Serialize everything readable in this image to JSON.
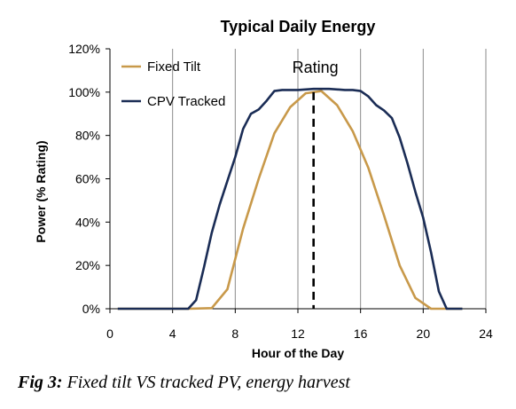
{
  "chart_data": {
    "type": "line",
    "title": "Typical Daily Energy",
    "xlabel": "Hour of the Day",
    "ylabel": "Power (% Rating)",
    "xlim": [
      0,
      24
    ],
    "ylim": [
      0,
      120
    ],
    "xticks": [
      0,
      4,
      8,
      12,
      16,
      20,
      24
    ],
    "yticks": [
      0,
      20,
      40,
      60,
      80,
      100,
      120
    ],
    "ytick_labels": [
      "0%",
      "20%",
      "40%",
      "60%",
      "80%",
      "100%",
      "120%"
    ],
    "grid": "vertical",
    "legend_position": "top-left",
    "series": [
      {
        "name": "Fixed Tilt",
        "color": "#c8994a",
        "x": [
          0.5,
          5,
          6.5,
          7.5,
          8.5,
          9.5,
          10.5,
          11.5,
          12.5,
          13.5,
          14.5,
          15.5,
          16.5,
          17.5,
          18.5,
          19.5,
          20.5,
          21.5,
          22.5
        ],
        "y": [
          0,
          0,
          0.3,
          9,
          37,
          60,
          81,
          93,
          99.5,
          100.5,
          94,
          82,
          65,
          43,
          20,
          5,
          0,
          0,
          0
        ]
      },
      {
        "name": "CPV Tracked",
        "color": "#1a2c55",
        "x": [
          0.5,
          5,
          5.5,
          6,
          6.5,
          7,
          7.5,
          8,
          8.5,
          9,
          9.5,
          10,
          10.5,
          11,
          12,
          13,
          14,
          15,
          15.5,
          16,
          16.5,
          17,
          17.5,
          18,
          18.5,
          19,
          19.5,
          20,
          20.5,
          21,
          21.5,
          22.5
        ],
        "y": [
          0,
          0,
          4,
          19,
          35,
          48,
          59,
          70,
          83,
          90,
          92,
          96,
          100.5,
          101,
          101,
          101.5,
          101.5,
          101,
          101,
          100.5,
          98,
          94,
          91.5,
          88,
          79,
          67,
          54,
          42,
          26,
          8,
          0,
          0
        ]
      }
    ],
    "annotations": [
      {
        "text": "Rating",
        "x": 13,
        "style": "dashed-vertical-line"
      }
    ]
  },
  "caption": {
    "lead": "Fig 3:",
    "text": " Fixed tilt VS tracked PV, energy harvest"
  }
}
